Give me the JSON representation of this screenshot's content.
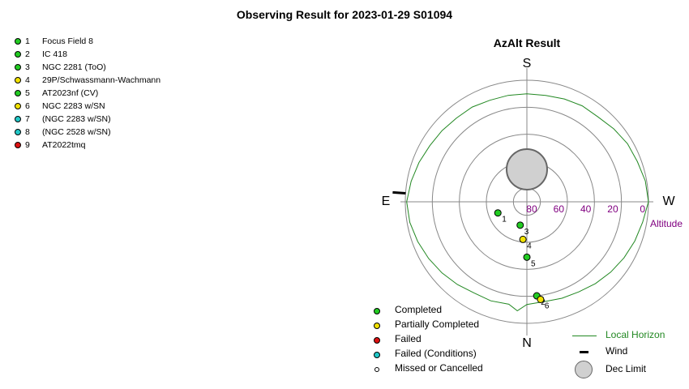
{
  "page_title": "Observing Result for 2023-01-29 S01094",
  "chart_title": "AzAlt Result",
  "colors": {
    "completed": "#22cc22",
    "partial": "#f2e200",
    "failed": "#dd1111",
    "failed_conditions": "#22c8c8",
    "horizon": "#228822",
    "alt_labels": "#800080",
    "grid": "#888888",
    "dec_limit": "#d0d0d0"
  },
  "targets": [
    {
      "num": "1",
      "name": "Focus Field 8",
      "status": "completed"
    },
    {
      "num": "2",
      "name": "IC 418",
      "status": "completed"
    },
    {
      "num": "3",
      "name": "NGC 2281 (ToO)",
      "status": "completed"
    },
    {
      "num": "4",
      "name": "29P/Schwassmann-Wachmann",
      "status": "partial"
    },
    {
      "num": "5",
      "name": "AT2023nf (CV)",
      "status": "completed"
    },
    {
      "num": "6",
      "name": "NGC 2283 w/SN",
      "status": "partial"
    },
    {
      "num": "7",
      "name": " (NGC 2283 w/SN)",
      "status": "failed_conditions"
    },
    {
      "num": "8",
      "name": " (NGC 2528 w/SN)",
      "status": "failed_conditions"
    },
    {
      "num": "9",
      "name": "AT2022tmq",
      "status": "failed"
    }
  ],
  "legend": {
    "completed": "Completed",
    "partial": "Partially Completed",
    "failed": "Failed",
    "failed_conditions": "Failed (Conditions)",
    "missed": "Missed or Cancelled",
    "local_horizon": "Local Horizon",
    "wind": "Wind",
    "dec_limit": "Dec Limit"
  },
  "chart_data": {
    "type": "scatter",
    "title": "AzAlt Result",
    "projection": "polar azimuth-altitude, South at top, West at right",
    "compass": {
      "top": "S",
      "bottom": "N",
      "left": "E",
      "right": "W"
    },
    "radial_axis_label": "Altitude",
    "altitude_ticks": [
      80,
      60,
      40,
      20,
      0
    ],
    "altitude_range": [
      0,
      90
    ],
    "points": [
      {
        "label": "1",
        "az": 249,
        "alt": 67,
        "status": "completed"
      },
      {
        "label": "2",
        "az": 174,
        "alt": 20,
        "status": "completed"
      },
      {
        "label": "3",
        "az": 196,
        "alt": 72,
        "status": "completed"
      },
      {
        "label": "4",
        "az": 186,
        "alt": 62,
        "status": "partial"
      },
      {
        "label": "5",
        "az": 180,
        "alt": 49,
        "status": "completed"
      },
      {
        "label": "6",
        "az": 172,
        "alt": 17,
        "status": "partial"
      }
    ],
    "wind_az": 274,
    "dec_limit": {
      "center_az": 0,
      "center_alt": 66,
      "radius_deg": 15
    },
    "local_horizon": [
      {
        "az": 0,
        "alt": 10
      },
      {
        "az": 10,
        "alt": 10
      },
      {
        "az": 20,
        "alt": 9
      },
      {
        "az": 30,
        "alt": 8
      },
      {
        "az": 40,
        "alt": 8
      },
      {
        "az": 50,
        "alt": 6
      },
      {
        "az": 60,
        "alt": 4
      },
      {
        "az": 70,
        "alt": 3
      },
      {
        "az": 80,
        "alt": 1
      },
      {
        "az": 90,
        "alt": 0
      },
      {
        "az": 100,
        "alt": 3
      },
      {
        "az": 110,
        "alt": 5
      },
      {
        "az": 120,
        "alt": 7
      },
      {
        "az": 130,
        "alt": 9
      },
      {
        "az": 140,
        "alt": 11
      },
      {
        "az": 150,
        "alt": 13
      },
      {
        "az": 160,
        "alt": 14
      },
      {
        "az": 170,
        "alt": 15
      },
      {
        "az": 180,
        "alt": 14
      },
      {
        "az": 185,
        "alt": 9
      },
      {
        "az": 190,
        "alt": 13
      },
      {
        "az": 200,
        "alt": 12
      },
      {
        "az": 210,
        "alt": 12
      },
      {
        "az": 220,
        "alt": 10
      },
      {
        "az": 230,
        "alt": 8
      },
      {
        "az": 240,
        "alt": 6
      },
      {
        "az": 250,
        "alt": 4
      },
      {
        "az": 260,
        "alt": 2
      },
      {
        "az": 270,
        "alt": 1
      },
      {
        "az": 280,
        "alt": 3
      },
      {
        "az": 290,
        "alt": 5
      },
      {
        "az": 300,
        "alt": 7
      },
      {
        "az": 310,
        "alt": 8
      },
      {
        "az": 320,
        "alt": 9
      },
      {
        "az": 330,
        "alt": 9
      },
      {
        "az": 340,
        "alt": 10
      },
      {
        "az": 350,
        "alt": 10
      },
      {
        "az": 360,
        "alt": 10
      }
    ]
  }
}
